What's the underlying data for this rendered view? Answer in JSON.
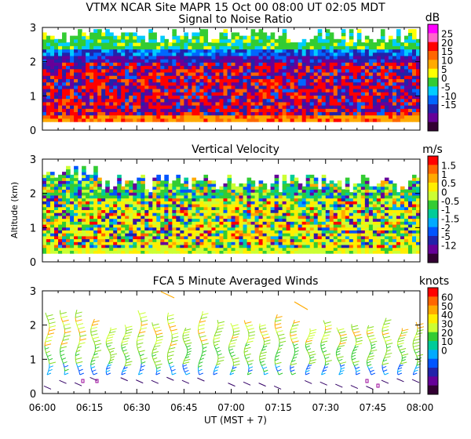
{
  "header": {
    "title": "VTMX   NCAR Site   MAPR 15 Oct 00   08:00 UT   02:05   MDT"
  },
  "x_axis": {
    "ticks": [
      "06:00",
      "06:15",
      "06:30",
      "06:45",
      "07:00",
      "07:15",
      "07:30",
      "07:45",
      "08:00"
    ],
    "label": "UT   (MST + 7)"
  },
  "y_label": "Altitude (km)",
  "chart_data": [
    {
      "type": "heatmap",
      "title": "Signal to Noise Ratio",
      "unit": "dB",
      "x": [
        "06:00",
        "08:00"
      ],
      "ylim": [
        0,
        3
      ],
      "yticks": [
        "0",
        "1",
        "2",
        "3"
      ],
      "colorbar": {
        "labels": [
          "25",
          "20",
          "15",
          "10",
          "5",
          "0",
          "-5",
          "-10",
          "-15"
        ],
        "colors": [
          "#ff00ff",
          "#ff66cc",
          "#ff0000",
          "#ff6600",
          "#ffaa00",
          "#ffff00",
          "#33cc33",
          "#00ccff",
          "#0066ff",
          "#2222aa",
          "#660099",
          "#330033"
        ]
      }
    },
    {
      "type": "heatmap",
      "title": "Vertical Velocity",
      "unit": "m/s",
      "x": [
        "06:00",
        "08:00"
      ],
      "ylim": [
        0,
        3
      ],
      "yticks": [
        "0",
        "1",
        "2",
        "3"
      ],
      "colorbar": {
        "labels": [
          "1.5",
          "1",
          "0.5",
          "0",
          "-0.5",
          "-1",
          "-1.5",
          "-2",
          "-5",
          "-12"
        ],
        "colors": [
          "#ff0000",
          "#ff6600",
          "#ffaa00",
          "#ffee00",
          "#ccff33",
          "#33cc33",
          "#00cc99",
          "#00aaff",
          "#0055ff",
          "#2222aa",
          "#660099",
          "#330033"
        ]
      }
    },
    {
      "type": "wind_barbs",
      "title": "FCA 5 Minute Averaged Winds",
      "unit": "knots",
      "x": [
        "06:00",
        "08:00"
      ],
      "ylim": [
        0,
        3
      ],
      "yticks": [
        "0",
        "1",
        "2",
        "3"
      ],
      "colorbar": {
        "labels": [
          "60",
          "50",
          "40",
          "30",
          "20",
          "10",
          "0"
        ],
        "colors": [
          "#ff0000",
          "#ff6600",
          "#ffaa00",
          "#ffee00",
          "#ccff33",
          "#33cc33",
          "#00cc99",
          "#00aaff",
          "#0055ff",
          "#2222aa",
          "#660099",
          "#330033"
        ]
      }
    }
  ]
}
